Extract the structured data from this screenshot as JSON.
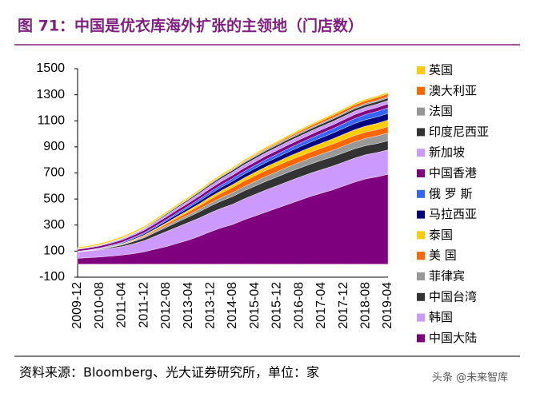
{
  "chart_data": {
    "type": "stacked_area",
    "title": "图 71：中国是优衣库海外扩张的主领地（门店数）",
    "source": "资料来源：Bloomberg、光大证券研究所，单位：家",
    "watermark": "头条 @未来智库",
    "categories": [
      "2009-12",
      null,
      "2010-08",
      null,
      "2011-04",
      null,
      "2011-12",
      null,
      "2012-08",
      null,
      "2013-04",
      null,
      "2013-12",
      null,
      "2014-08",
      null,
      "2015-04",
      null,
      "2015-12",
      null,
      "2016-08",
      null,
      "2017-04",
      null,
      "2017-12",
      null,
      "2018-08",
      null,
      "2019-04"
    ],
    "ylim": [
      -100,
      1500
    ],
    "yticks": [
      -100,
      100,
      300,
      500,
      700,
      900,
      1100,
      1300,
      1500
    ],
    "series": [
      {
        "name": "中国大陆",
        "color": "#7f007f",
        "values": [
          45,
          50,
          55,
          62,
          70,
          80,
          95,
          115,
          135,
          160,
          185,
          215,
          250,
          280,
          305,
          340,
          370,
          400,
          430,
          460,
          490,
          520,
          545,
          570,
          600,
          630,
          655,
          670,
          690
        ]
      },
      {
        "name": "韩国",
        "color": "#cc99ff",
        "values": [
          50,
          52,
          55,
          60,
          65,
          75,
          85,
          100,
          115,
          125,
          135,
          140,
          145,
          150,
          155,
          160,
          165,
          170,
          172,
          175,
          177,
          178,
          180,
          182,
          183,
          184,
          185,
          186,
          187
        ]
      },
      {
        "name": "中国台湾",
        "color": "#333333",
        "values": [
          0,
          2,
          5,
          8,
          12,
          18,
          22,
          28,
          32,
          38,
          42,
          48,
          52,
          56,
          60,
          62,
          64,
          66,
          68,
          70,
          70,
          70,
          72,
          72,
          72,
          72,
          70,
          70,
          70
        ]
      },
      {
        "name": "菲律宾",
        "color": "#999999",
        "values": [
          0,
          0,
          0,
          1,
          3,
          5,
          7,
          9,
          12,
          14,
          17,
          20,
          23,
          26,
          30,
          33,
          36,
          38,
          40,
          42,
          44,
          46,
          48,
          50,
          52,
          54,
          56,
          58,
          60
        ]
      },
      {
        "name": "美 国",
        "color": "#ff6600",
        "values": [
          1,
          1,
          2,
          3,
          4,
          6,
          8,
          10,
          14,
          18,
          22,
          26,
          30,
          35,
          40,
          42,
          44,
          46,
          46,
          46,
          46,
          46,
          46,
          47,
          48,
          48,
          48,
          48,
          49
        ]
      },
      {
        "name": "泰国",
        "color": "#ffcc00",
        "values": [
          0,
          0,
          0,
          1,
          2,
          4,
          6,
          8,
          10,
          12,
          14,
          16,
          18,
          20,
          22,
          24,
          26,
          28,
          30,
          32,
          34,
          36,
          38,
          40,
          42,
          44,
          46,
          48,
          50
        ]
      },
      {
        "name": "马拉西亚",
        "color": "#000080",
        "values": [
          1,
          2,
          3,
          4,
          6,
          8,
          10,
          12,
          14,
          16,
          18,
          20,
          22,
          24,
          26,
          28,
          30,
          32,
          34,
          36,
          38,
          40,
          42,
          44,
          46,
          48,
          49,
          50,
          50
        ]
      },
      {
        "name": "俄 罗 斯",
        "color": "#3366ff",
        "values": [
          2,
          3,
          4,
          5,
          6,
          7,
          8,
          9,
          10,
          12,
          14,
          16,
          18,
          20,
          21,
          22,
          23,
          24,
          25,
          26,
          28,
          30,
          32,
          34,
          36,
          38,
          40,
          42,
          44
        ]
      },
      {
        "name": "中国香港",
        "color": "#800080",
        "values": [
          14,
          15,
          16,
          17,
          18,
          18,
          19,
          20,
          21,
          22,
          22,
          23,
          24,
          25,
          25,
          26,
          26,
          27,
          28,
          28,
          28,
          28,
          29,
          29,
          29,
          30,
          30,
          30,
          30
        ]
      },
      {
        "name": "新加坡",
        "color": "#cc99ff",
        "values": [
          5,
          6,
          7,
          8,
          9,
          10,
          11,
          12,
          14,
          16,
          18,
          20,
          22,
          23,
          24,
          25,
          25,
          25,
          25,
          26,
          26,
          26,
          26,
          26,
          26,
          26,
          26,
          26,
          26
        ]
      },
      {
        "name": "印度尼西亚",
        "color": "#333333",
        "values": [
          0,
          0,
          0,
          1,
          2,
          3,
          4,
          6,
          8,
          9,
          10,
          11,
          12,
          13,
          14,
          15,
          15,
          16,
          16,
          17,
          17,
          18,
          18,
          19,
          19,
          19,
          19,
          19,
          19
        ]
      },
      {
        "name": "法国",
        "color": "#969696",
        "values": [
          1,
          1,
          2,
          2,
          3,
          3,
          4,
          4,
          5,
          5,
          6,
          6,
          7,
          7,
          8,
          8,
          8,
          8,
          9,
          9,
          9,
          9,
          9,
          9,
          9,
          10,
          10,
          10,
          10
        ]
      },
      {
        "name": "澳大利亚",
        "color": "#ff6600",
        "values": [
          0,
          0,
          0,
          0,
          0,
          0,
          0,
          0,
          0,
          0,
          0,
          0,
          0,
          1,
          2,
          3,
          5,
          7,
          8,
          10,
          12,
          14,
          16,
          18,
          19,
          20,
          21,
          22,
          22
        ]
      },
      {
        "name": "英国",
        "color": "#ffcc00",
        "values": [
          10,
          10,
          11,
          11,
          12,
          12,
          12,
          12,
          12,
          12,
          12,
          12,
          12,
          12,
          12,
          12,
          12,
          12,
          12,
          12,
          12,
          12,
          12,
          12,
          12,
          12,
          12,
          12,
          12
        ]
      }
    ]
  }
}
